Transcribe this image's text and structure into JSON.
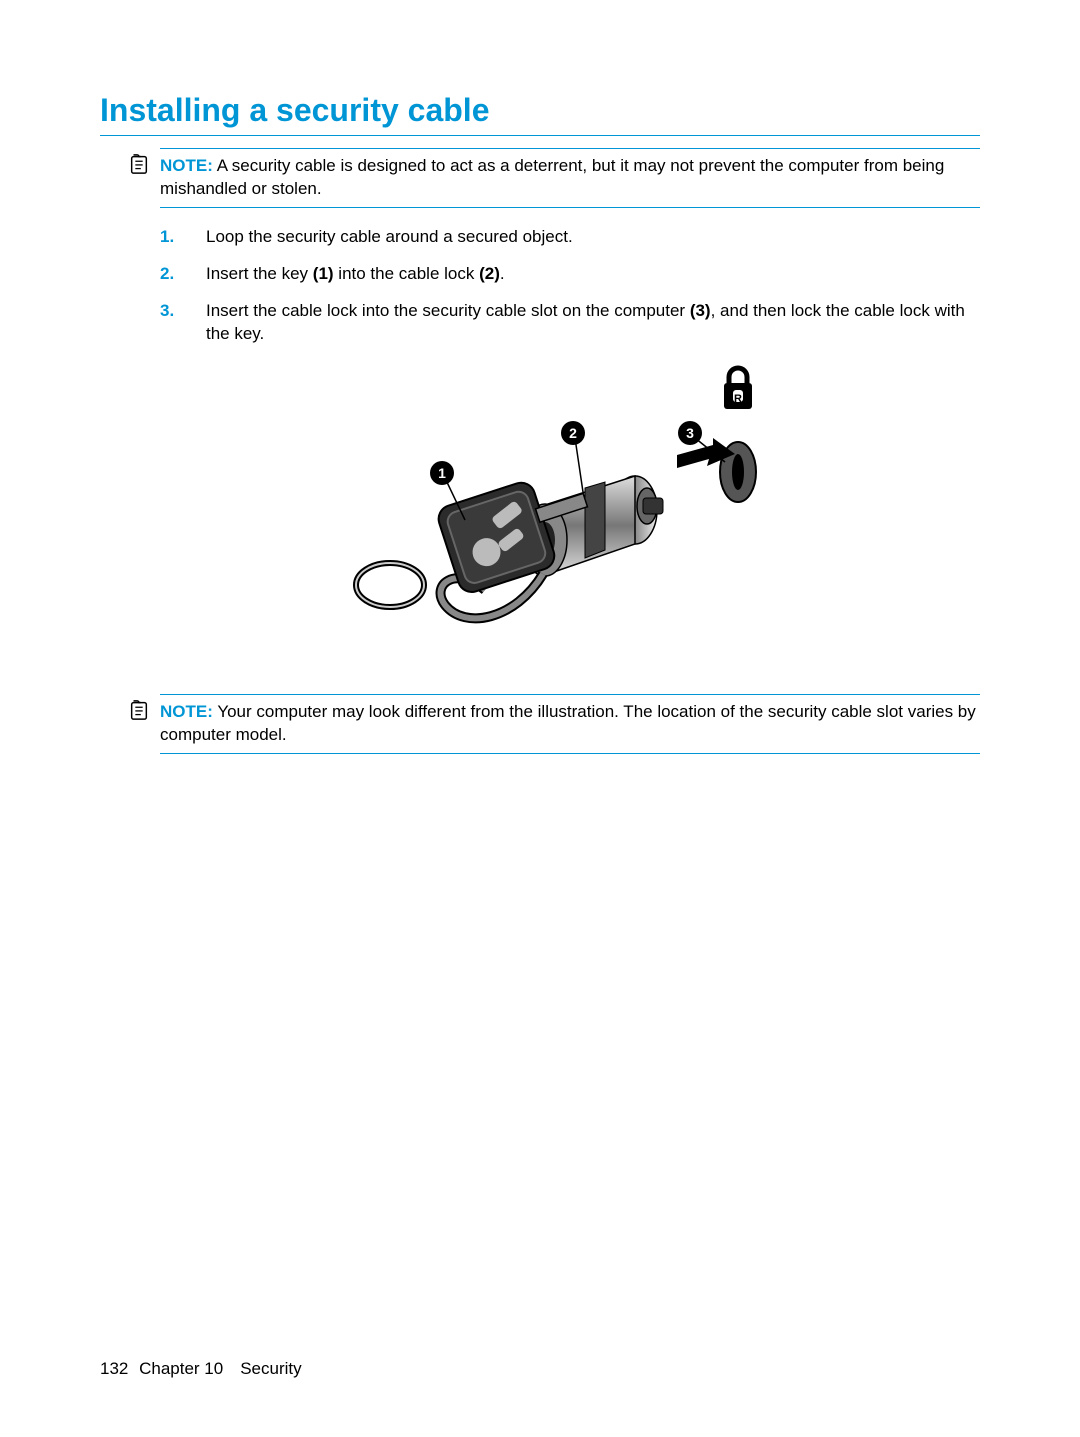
{
  "heading": "Installing a security cable",
  "note1_label": "NOTE:",
  "note1_text": "A security cable is designed to act as a deterrent, but it may not prevent the computer from being mishandled or stolen.",
  "steps": [
    {
      "num": "1.",
      "html": "Loop the security cable around a secured object."
    },
    {
      "num": "2.",
      "html": "Insert the key <b>(1)</b> into the cable lock <b>(2)</b>."
    },
    {
      "num": "3.",
      "html": "Insert the cable lock into the security cable slot on the computer <b>(3)</b>, and then lock the cable lock with the key."
    }
  ],
  "note2_label": "NOTE:",
  "note2_text": "Your computer may look different from the illustration. The location of the security cable slot varies by computer model.",
  "footer_page": "132",
  "footer_chapter": "Chapter 10 Security",
  "colors": {
    "accent": "#0096d6",
    "text": "#000000",
    "bg": "#ffffff"
  },
  "figure": {
    "type": "illustration",
    "callouts": [
      "1",
      "2",
      "3"
    ],
    "desc": "Key inserted into cable lock, lock goes into security cable slot marked with lock icon"
  }
}
